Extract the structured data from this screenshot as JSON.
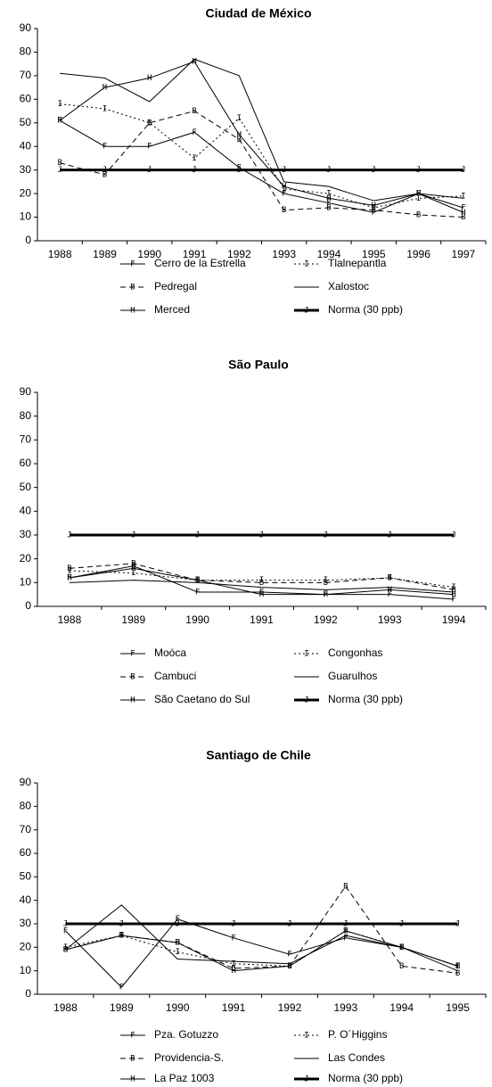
{
  "chart_data": [
    {
      "type": "line",
      "title": "Ciudad de México",
      "categories": [
        "1988",
        "1989",
        "1990",
        "1991",
        "1992",
        "1993",
        "1994",
        "1995",
        "1996",
        "1997"
      ],
      "ylim": [
        0,
        90
      ],
      "yticks": [
        0,
        10,
        20,
        30,
        40,
        50,
        60,
        70,
        80,
        90
      ],
      "series": [
        {
          "name": "Cerro de la Estrella",
          "color": "#000",
          "marker": "F",
          "line_style": "solid",
          "values": [
            51,
            40,
            40,
            46,
            31,
            20,
            16,
            12,
            20,
            14
          ]
        },
        {
          "name": "Tlalnepantla",
          "color": "#000",
          "marker": "I",
          "line_style": "dotted",
          "values": [
            58,
            56,
            50,
            35,
            52,
            22,
            20,
            14,
            18,
            19
          ]
        },
        {
          "name": "Pedregal",
          "color": "#000",
          "marker": "B",
          "line_style": "dashed",
          "values": [
            33,
            28,
            50,
            55,
            43,
            13,
            14,
            13,
            11,
            10
          ]
        },
        {
          "name": "Xalostoc",
          "color": "#000",
          "line_style": "solid",
          "values": [
            71,
            69,
            59,
            77,
            70,
            25,
            23,
            17,
            20,
            18
          ]
        },
        {
          "name": "Merced",
          "color": "#000",
          "marker": "H",
          "line_style": "solid",
          "values": [
            51,
            65,
            69,
            76,
            45,
            23,
            18,
            15,
            20,
            12
          ]
        },
        {
          "name": "Norma (30 ppb)",
          "color": "#000",
          "marker": "J",
          "line_style": "solid",
          "line_width": 3,
          "values": [
            30,
            30,
            30,
            30,
            30,
            30,
            30,
            30,
            30,
            30
          ]
        }
      ]
    },
    {
      "type": "line",
      "title": "São Paulo",
      "categories": [
        "1988",
        "1989",
        "1990",
        "1991",
        "1992",
        "1993",
        "1994"
      ],
      "ylim": [
        0,
        90
      ],
      "yticks": [
        0,
        10,
        20,
        30,
        40,
        50,
        60,
        70,
        80,
        90
      ],
      "series": [
        {
          "name": "Moóca",
          "color": "#000",
          "marker": "F",
          "line_style": "solid",
          "values": [
            12,
            17,
            6,
            6,
            5,
            5,
            3
          ]
        },
        {
          "name": "Congonhas",
          "color": "#000",
          "marker": "I",
          "line_style": "dotted",
          "values": [
            15,
            14,
            11,
            11,
            11,
            12,
            8
          ]
        },
        {
          "name": "Cambuci",
          "color": "#000",
          "marker": "B",
          "line_style": "dashed",
          "values": [
            16,
            18,
            11,
            10,
            10,
            12,
            7
          ]
        },
        {
          "name": "Guarulhos",
          "color": "#000",
          "line_style": "solid",
          "values": [
            10,
            11,
            10,
            8,
            7,
            8,
            6
          ]
        },
        {
          "name": "São Caetano do Sul",
          "color": "#000",
          "marker": "H",
          "line_style": "solid",
          "values": [
            12,
            16,
            11,
            5,
            5,
            7,
            5
          ]
        },
        {
          "name": "Norma (30 ppb)",
          "color": "#000",
          "marker": "J",
          "line_style": "solid",
          "line_width": 3,
          "values": [
            30,
            30,
            30,
            30,
            30,
            30,
            30
          ]
        }
      ]
    },
    {
      "type": "line",
      "title": "Santiago de Chile",
      "categories": [
        "1988",
        "1989",
        "1990",
        "1991",
        "1992",
        "1993",
        "1994",
        "1995"
      ],
      "ylim": [
        0,
        90
      ],
      "yticks": [
        0,
        10,
        20,
        30,
        40,
        50,
        60,
        70,
        80,
        90
      ],
      "series": [
        {
          "name": "Pza. Gotuzzo",
          "color": "#000",
          "marker": "F",
          "line_style": "solid",
          "values": [
            27,
            3,
            32,
            24,
            17,
            24,
            20,
            12
          ]
        },
        {
          "name": "P. O´Higgins",
          "color": "#000",
          "marker": "I",
          "line_style": "dotted",
          "values": [
            20,
            25,
            18,
            13,
            12,
            27,
            20,
            12
          ]
        },
        {
          "name": "Providencia-S.",
          "color": "#000",
          "marker": "B",
          "line_style": "dashed",
          "values": [
            19,
            25,
            22,
            11,
            12,
            46,
            12,
            9
          ]
        },
        {
          "name": "Las Condes",
          "color": "#000",
          "line_style": "solid",
          "values": [
            19,
            38,
            15,
            14,
            13,
            25,
            20,
            10
          ]
        },
        {
          "name": "La Paz 1003",
          "color": "#000",
          "marker": "H",
          "line_style": "solid",
          "values": [
            19,
            25,
            22,
            10,
            12,
            27,
            20,
            12
          ]
        },
        {
          "name": "Norma (30 ppb)",
          "color": "#000",
          "marker": "J",
          "line_style": "solid",
          "line_width": 3,
          "values": [
            30,
            30,
            30,
            30,
            30,
            30,
            30,
            30
          ]
        }
      ]
    }
  ]
}
